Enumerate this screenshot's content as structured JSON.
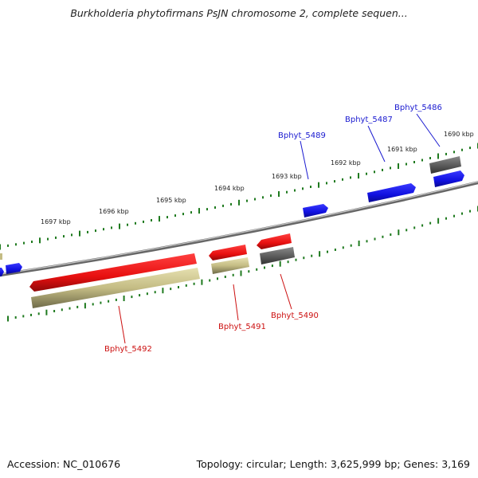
{
  "title": "Burkholderia phytofirmans PsJN chromosome 2, complete sequen...",
  "footer": {
    "accession": "Accession: NC_010676",
    "summary": "Topology: circular; Length: 3,625,999 bp; Genes: 3,169"
  },
  "colors": {
    "forward_gene": "#1010e0",
    "reverse_gene": "#e81010",
    "pseudo_gene": "#666666",
    "reverse_cds": "#c4bc84",
    "tick": "#1f7a1f",
    "backbone": "#777777",
    "forward_label": "#1a1ad0",
    "reverse_label": "#cc1010"
  },
  "kbp_labels": [
    "1690 kbp",
    "1691 kbp",
    "1692 kbp",
    "1693 kbp",
    "1694 kbp",
    "1695 kbp",
    "1696 kbp",
    "1697 kbp"
  ],
  "gene_labels": {
    "bphyt_5486": "Bphyt_5486",
    "bphyt_5487": "Bphyt_5487",
    "bphyt_5489": "Bphyt_5489",
    "bphyt_5490": "Bphyt_5490",
    "bphyt_5491": "Bphyt_5491",
    "bphyt_5492": "Bphyt_5492"
  }
}
